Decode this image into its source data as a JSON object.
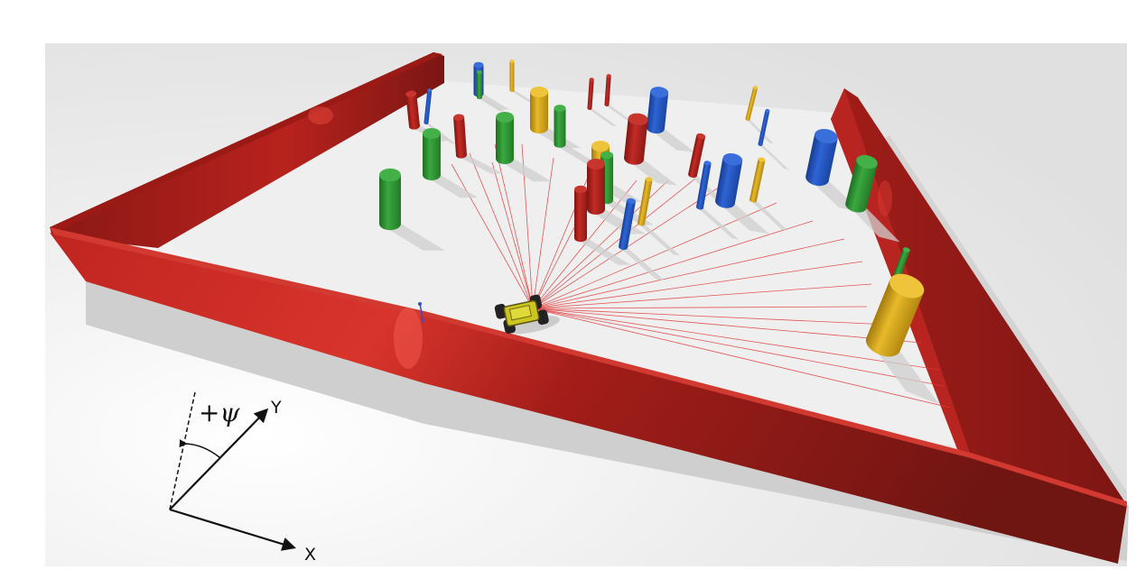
{
  "scene": {
    "description_free": true,
    "colors": {
      "background": "#e6e6e6",
      "floor": "#eeeeee",
      "wall": "#b51f1c",
      "wall_dark": "#7e1714",
      "obstacle_red": "#b3201c",
      "obstacle_green": "#2f9a34",
      "obstacle_blue": "#2456c4",
      "obstacle_yellow": "#d8a81a",
      "lidar_ray": "#e23a3a",
      "robot_body": "#c9c21e",
      "axis": "#111111"
    }
  },
  "axes": {
    "x_label": "X",
    "y_label": "Y",
    "psi_label": "+ψ"
  }
}
